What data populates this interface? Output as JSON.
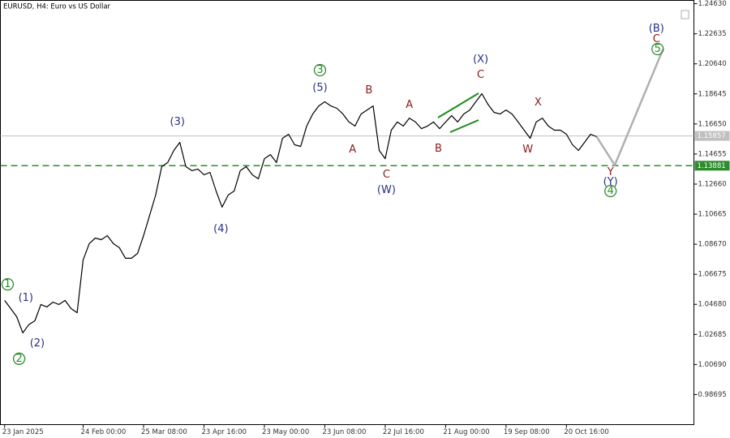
{
  "chart_data": {
    "type": "line",
    "title": "EURUSD, H4:  Euro vs US Dollar",
    "xlim": [
      -0.7,
      114.1
    ],
    "ylim": [
      0.967,
      1.2485
    ],
    "xticks": [
      {
        "value": 0,
        "label": "23 Jan 2025"
      },
      {
        "value": 13,
        "label": "24 Feb 00:00"
      },
      {
        "value": 23,
        "label": "25 Mar 08:00"
      },
      {
        "value": 33,
        "label": "23 Apr 16:00"
      },
      {
        "value": 43,
        "label": "23 May 00:00"
      },
      {
        "value": 53,
        "label": "23 Jun 08:00"
      },
      {
        "value": 63,
        "label": "22 Jul 16:00"
      },
      {
        "value": 73,
        "label": "21 Aug 00:00"
      },
      {
        "value": 83,
        "label": "19 Sep 08:00"
      },
      {
        "value": 93,
        "label": "20 Oct 16:00"
      }
    ],
    "yticks": [
      {
        "value": 1.2463,
        "label": "1.24630"
      },
      {
        "value": 1.22635,
        "label": "1.22635"
      },
      {
        "value": 1.2064,
        "label": "1.20640"
      },
      {
        "value": 1.18645,
        "label": "1.18645"
      },
      {
        "value": 1.1665,
        "label": "1.16650"
      },
      {
        "value": 1.14655,
        "label": "1.14655"
      },
      {
        "value": 1.1266,
        "label": "1.12660"
      },
      {
        "value": 1.10665,
        "label": "1.10665"
      },
      {
        "value": 1.0867,
        "label": "1.08670"
      },
      {
        "value": 1.06675,
        "label": "1.06675"
      },
      {
        "value": 1.0468,
        "label": "1.04680"
      },
      {
        "value": 1.02685,
        "label": "1.02685"
      },
      {
        "value": 1.0069,
        "label": "1.00690"
      },
      {
        "value": 0.98695,
        "label": "0.98695"
      }
    ],
    "series": [
      {
        "color": "#000000",
        "values": [
          1.0494,
          1.044,
          1.0386,
          1.0279,
          1.0333,
          1.0359,
          1.0467,
          1.0451,
          1.0483,
          1.0467,
          1.0494,
          1.044,
          1.0413,
          1.0763,
          1.0871,
          1.0908,
          1.0897,
          1.0924,
          1.0871,
          1.0844,
          1.0774,
          1.0774,
          1.0806,
          1.0924,
          1.1059,
          1.1193,
          1.1382,
          1.1409,
          1.1489,
          1.1543,
          1.1382,
          1.1355,
          1.1366,
          1.1328,
          1.1344,
          1.122,
          1.1113,
          1.1193,
          1.122,
          1.1355,
          1.1382,
          1.1328,
          1.1301,
          1.1435,
          1.1462,
          1.1409,
          1.157,
          1.1597,
          1.1527,
          1.1516,
          1.1651,
          1.1731,
          1.1785,
          1.1812,
          1.1785,
          1.1769,
          1.1731,
          1.1678,
          1.1651,
          1.1731,
          1.1758,
          1.1785,
          1.1489,
          1.1435,
          1.1624,
          1.1678,
          1.1651,
          1.1704,
          1.1678,
          1.1634,
          1.1651,
          1.1678,
          1.1634,
          1.1678,
          1.172,
          1.1678,
          1.1731,
          1.1758,
          1.1812,
          1.1866,
          1.1796,
          1.1742,
          1.1731,
          1.1758,
          1.1731,
          1.1678,
          1.1624,
          1.157,
          1.1678,
          1.1704,
          1.1651,
          1.1624,
          1.1624,
          1.1597,
          1.1527,
          1.1489,
          1.1543,
          1.1597,
          1.1581
        ]
      },
      {
        "color": "#b0b0b0",
        "x": [
          98,
          101,
          109
        ],
        "values": [
          1.1581,
          1.1392,
          1.2162
        ]
      }
    ],
    "hlines": [
      {
        "value": 1.15857,
        "label": "1.15857",
        "color": "#c0c0c0",
        "dashed": false
      },
      {
        "value": 1.13881,
        "label": "1.13881",
        "color": "#2e8b2e",
        "dashed": true
      }
    ],
    "annotations": [
      {
        "text": "1",
        "x": 0.5,
        "y": 1.0601,
        "color": "#2e8b2e",
        "circled": true
      },
      {
        "text": "(1)",
        "x": 3.5,
        "y": 1.051,
        "color": "#2a2f86"
      },
      {
        "text": "2",
        "x": 2.4,
        "y": 1.0107,
        "color": "#2e8b2e",
        "circled": true
      },
      {
        "text": "(2)",
        "x": 5.4,
        "y": 1.0209,
        "color": "#2a2f86"
      },
      {
        "text": "(3)",
        "x": 28.6,
        "y": 1.1678,
        "color": "#2a2f86"
      },
      {
        "text": "(4)",
        "x": 35.8,
        "y": 1.0967,
        "color": "#2a2f86"
      },
      {
        "text": "3",
        "x": 52.2,
        "y": 1.2022,
        "color": "#2e8b2e",
        "circled": true
      },
      {
        "text": "(5)",
        "x": 52.2,
        "y": 1.1904,
        "color": "#2a2f86"
      },
      {
        "text": "B",
        "x": 60.3,
        "y": 1.1887,
        "color": "#8b1a1a"
      },
      {
        "text": "A",
        "x": 57.6,
        "y": 1.1495,
        "color": "#8b1a1a"
      },
      {
        "text": "C",
        "x": 63.2,
        "y": 1.1328,
        "color": "#8b1a1a"
      },
      {
        "text": "(W)",
        "x": 63.2,
        "y": 1.1226,
        "color": "#2a2f86"
      },
      {
        "text": "A",
        "x": 67.0,
        "y": 1.179,
        "color": "#8b1a1a"
      },
      {
        "text": "B",
        "x": 71.8,
        "y": 1.15,
        "color": "#8b1a1a"
      },
      {
        "text": "C",
        "x": 78.8,
        "y": 1.199,
        "color": "#8b1a1a"
      },
      {
        "text": "(X)",
        "x": 78.8,
        "y": 1.2092,
        "color": "#2a2f86"
      },
      {
        "text": "X",
        "x": 88.3,
        "y": 1.1807,
        "color": "#8b1a1a"
      },
      {
        "text": "W",
        "x": 86.6,
        "y": 1.1495,
        "color": "#8b1a1a"
      },
      {
        "text": "Y",
        "x": 100.3,
        "y": 1.1344,
        "color": "#8b1a1a"
      },
      {
        "text": "(Y)",
        "x": 100.3,
        "y": 1.128,
        "color": "#2a2f86"
      },
      {
        "text": "4",
        "x": 100.3,
        "y": 1.122,
        "color": "#2e8b2e",
        "circled": true
      },
      {
        "text": "(B)",
        "x": 107.9,
        "y": 1.2296,
        "color": "#2a2f86",
        "large": true
      },
      {
        "text": "C",
        "x": 107.9,
        "y": 1.2226,
        "color": "#8b1a1a"
      },
      {
        "text": "5",
        "x": 108.1,
        "y": 1.2162,
        "color": "#2e8b2e",
        "circled": true
      }
    ]
  }
}
